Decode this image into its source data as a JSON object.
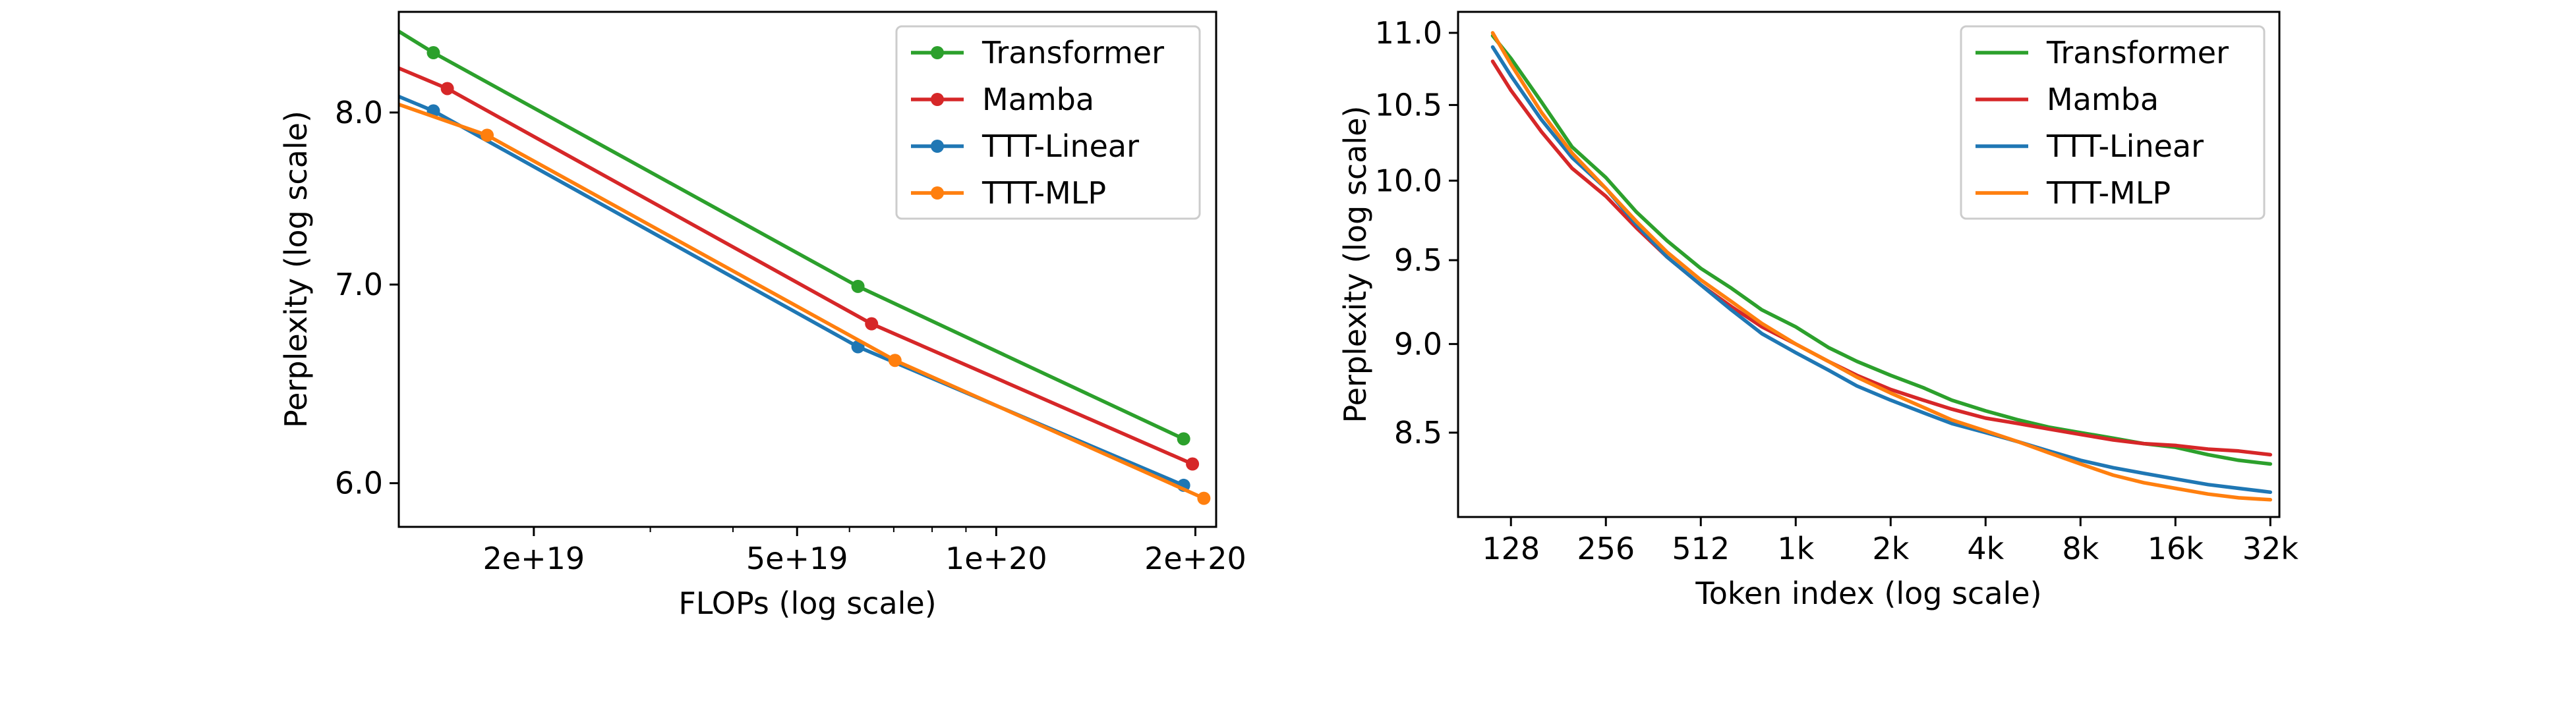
{
  "colors": {
    "Transformer": "#2ca02c",
    "Mamba": "#d62728",
    "TTT-Linear": "#1f77b4",
    "TTT-MLP": "#ff7f0e"
  },
  "chart_data": [
    {
      "type": "line",
      "markers": true,
      "xlabel": "FLOPs (log scale)",
      "ylabel": "Perplexity (log scale)",
      "xscale": "log",
      "yscale": "log",
      "xlim": [
        1.25e+19,
        2.15e+20
      ],
      "ylim": [
        5.8,
        8.65
      ],
      "xticks": [
        2e+19,
        5e+19,
        1e+20,
        2e+20
      ],
      "xtick_labels": [
        "2e+19",
        "5e+19",
        "1e+20",
        "2e+20"
      ],
      "yticks": [
        6.0,
        7.0,
        8.0
      ],
      "ytick_labels": [
        "6.0",
        "7.0",
        "8.0"
      ],
      "grid": false,
      "legend": "top-right",
      "series": [
        {
          "name": "Transformer",
          "x": [
            1.25e+19,
            1.41e+19,
            6.18e+19,
            1.92e+20
          ],
          "y": [
            8.52,
            8.38,
            6.99,
            6.21
          ],
          "marker_from": 1
        },
        {
          "name": "Mamba",
          "x": [
            1.25e+19,
            1.48e+19,
            6.48e+19,
            1.98e+20
          ],
          "y": [
            8.28,
            8.15,
            6.79,
            6.09
          ],
          "marker_from": 1
        },
        {
          "name": "TTT-Linear",
          "x": [
            1.25e+19,
            1.41e+19,
            6.18e+19,
            1.92e+20
          ],
          "y": [
            8.1,
            8.01,
            6.67,
            5.99
          ],
          "marker_from": 1
        },
        {
          "name": "TTT-MLP",
          "x": [
            1.25e+19,
            1.7e+19,
            7.03e+19,
            2.06e+20
          ],
          "y": [
            8.05,
            7.86,
            6.6,
            5.93
          ],
          "marker_from": 1
        }
      ]
    },
    {
      "type": "line",
      "markers": false,
      "xlabel": "Token index (log scale)",
      "ylabel": "Perplexity (log scale)",
      "xscale": "log",
      "yscale": "log",
      "xlim": [
        87,
        35000
      ],
      "ylim": [
        8.05,
        11.15
      ],
      "xticks": [
        128,
        256,
        512,
        1024,
        2048,
        4096,
        8192,
        16384,
        32768
      ],
      "xtick_labels": [
        "128",
        "256",
        "512",
        "1k",
        "2k",
        "4k",
        "8k",
        "16k",
        "32k"
      ],
      "yticks": [
        8.5,
        9.0,
        9.5,
        10.0,
        10.5,
        11.0
      ],
      "ytick_labels": [
        "8.5",
        "9.0",
        "9.5",
        "10.0",
        "10.5",
        "11.0"
      ],
      "grid": false,
      "legend": "top-right",
      "series": [
        {
          "name": "Transformer",
          "x": [
            112,
            128,
            160,
            200,
            256,
            320,
            400,
            512,
            640,
            800,
            1024,
            1300,
            1600,
            2048,
            2600,
            3200,
            4096,
            5200,
            6500,
            8192,
            10400,
            13000,
            16384,
            20800,
            26000,
            32768
          ],
          "y": [
            10.98,
            10.82,
            10.52,
            10.22,
            10.02,
            9.8,
            9.62,
            9.45,
            9.33,
            9.2,
            9.1,
            8.98,
            8.9,
            8.82,
            8.75,
            8.68,
            8.62,
            8.57,
            8.53,
            8.5,
            8.47,
            8.44,
            8.42,
            8.38,
            8.35,
            8.33
          ]
        },
        {
          "name": "Mamba",
          "x": [
            112,
            128,
            160,
            200,
            256,
            320,
            400,
            512,
            640,
            800,
            1024,
            1300,
            1600,
            2048,
            2600,
            3200,
            4096,
            5200,
            6500,
            8192,
            10400,
            13000,
            16384,
            20800,
            26000,
            32768
          ],
          "y": [
            10.8,
            10.6,
            10.32,
            10.08,
            9.9,
            9.7,
            9.52,
            9.35,
            9.22,
            9.1,
            9.0,
            8.9,
            8.82,
            8.74,
            8.68,
            8.63,
            8.58,
            8.55,
            8.52,
            8.49,
            8.46,
            8.44,
            8.43,
            8.41,
            8.4,
            8.38
          ]
        },
        {
          "name": "TTT-Linear",
          "x": [
            112,
            128,
            160,
            200,
            256,
            320,
            400,
            512,
            640,
            800,
            1024,
            1300,
            1600,
            2048,
            2600,
            3200,
            4096,
            5200,
            6500,
            8192,
            10400,
            13000,
            16384,
            20800,
            26000,
            32768
          ],
          "y": [
            10.9,
            10.7,
            10.4,
            10.15,
            9.95,
            9.72,
            9.52,
            9.35,
            9.2,
            9.06,
            8.95,
            8.85,
            8.76,
            8.68,
            8.61,
            8.55,
            8.5,
            8.45,
            8.4,
            8.35,
            8.31,
            8.28,
            8.25,
            8.22,
            8.2,
            8.18
          ]
        },
        {
          "name": "TTT-MLP",
          "x": [
            112,
            128,
            160,
            200,
            256,
            320,
            400,
            512,
            640,
            800,
            1024,
            1300,
            1600,
            2048,
            2600,
            3200,
            4096,
            5200,
            6500,
            8192,
            10400,
            13000,
            16384,
            20800,
            26000,
            32768
          ],
          "y": [
            11.0,
            10.78,
            10.45,
            10.18,
            9.95,
            9.74,
            9.55,
            9.38,
            9.25,
            9.12,
            9.0,
            8.9,
            8.81,
            8.72,
            8.64,
            8.57,
            8.51,
            8.45,
            8.39,
            8.33,
            8.27,
            8.23,
            8.2,
            8.17,
            8.15,
            8.14
          ]
        }
      ]
    }
  ]
}
